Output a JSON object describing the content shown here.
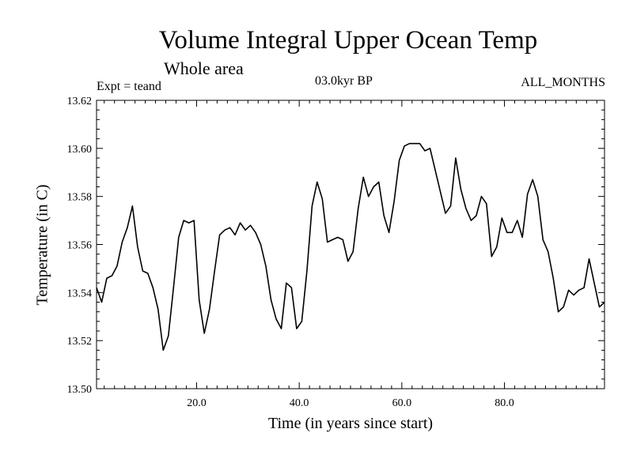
{
  "chart_data": {
    "type": "line",
    "title": "Volume Integral Upper Ocean Temp",
    "subtitle": "Whole area",
    "annotations": {
      "experiment": "Expt = teand",
      "period": "03.0kyr BP",
      "months": "ALL_MONTHS"
    },
    "xlabel": "Time (in years since start)",
    "ylabel": "Temperature (in C)",
    "xlim": [
      0.5,
      99.5
    ],
    "ylim": [
      13.5,
      13.62
    ],
    "xticks": [
      20,
      40,
      60,
      80
    ],
    "xtick_labels": [
      "20.0",
      "40.0",
      "60.0",
      "80.0"
    ],
    "yticks": [
      13.5,
      13.52,
      13.54,
      13.56,
      13.58,
      13.6,
      13.62
    ],
    "ytick_labels": [
      "13.50",
      "13.52",
      "13.54",
      "13.56",
      "13.58",
      "13.60",
      "13.62"
    ],
    "grid": false,
    "series": [
      {
        "name": "Upper Ocean Temp",
        "x": [
          0.5,
          1.5,
          2.5,
          3.5,
          4.5,
          5.5,
          6.5,
          7.5,
          8.5,
          9.5,
          10.5,
          11.5,
          12.5,
          13.5,
          14.5,
          15.5,
          16.5,
          17.5,
          18.5,
          19.5,
          20.5,
          21.5,
          22.5,
          23.5,
          24.5,
          25.5,
          26.5,
          27.5,
          28.5,
          29.5,
          30.5,
          31.5,
          32.5,
          33.5,
          34.5,
          35.5,
          36.5,
          37.5,
          38.5,
          39.5,
          40.5,
          41.5,
          42.5,
          43.5,
          44.5,
          45.5,
          46.5,
          47.5,
          48.5,
          49.5,
          50.5,
          51.5,
          52.5,
          53.5,
          54.5,
          55.5,
          56.5,
          57.5,
          58.5,
          59.5,
          60.5,
          61.5,
          62.5,
          63.5,
          64.5,
          65.5,
          66.5,
          67.5,
          68.5,
          69.5,
          70.5,
          71.5,
          72.5,
          73.5,
          74.5,
          75.5,
          76.5,
          77.5,
          78.5,
          79.5,
          80.5,
          81.5,
          82.5,
          83.5,
          84.5,
          85.5,
          86.5,
          87.5,
          88.5,
          89.5,
          90.5,
          91.5,
          92.5,
          93.5,
          94.5,
          95.5,
          96.5,
          97.5,
          98.5,
          99.5
        ],
        "values": [
          13.542,
          13.536,
          13.546,
          13.547,
          13.551,
          13.561,
          13.567,
          13.576,
          13.559,
          13.549,
          13.548,
          13.542,
          13.533,
          13.516,
          13.522,
          13.542,
          13.563,
          13.57,
          13.569,
          13.57,
          13.537,
          13.523,
          13.533,
          13.549,
          13.564,
          13.566,
          13.567,
          13.564,
          13.569,
          13.566,
          13.568,
          13.565,
          13.56,
          13.551,
          13.537,
          13.529,
          13.525,
          13.544,
          13.542,
          13.525,
          13.528,
          13.549,
          13.576,
          13.586,
          13.579,
          13.561,
          13.562,
          13.563,
          13.562,
          13.553,
          13.557,
          13.575,
          13.588,
          13.58,
          13.584,
          13.586,
          13.572,
          13.565,
          13.578,
          13.595,
          13.601,
          13.602,
          13.602,
          13.602,
          13.599,
          13.6,
          13.591,
          13.582,
          13.573,
          13.576,
          13.596,
          13.583,
          13.575,
          13.57,
          13.572,
          13.58,
          13.577,
          13.555,
          13.559,
          13.571,
          13.565,
          13.565,
          13.57,
          13.563,
          13.581,
          13.587,
          13.58,
          13.562,
          13.557,
          13.546,
          13.532,
          13.534,
          13.541,
          13.539,
          13.541,
          13.542,
          13.554,
          13.544,
          13.534,
          13.536
        ]
      }
    ]
  }
}
